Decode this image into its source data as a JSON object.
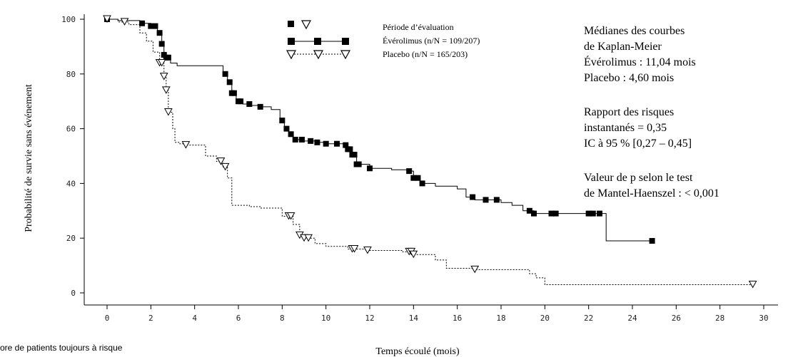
{
  "chart_data": {
    "type": "line",
    "title": "",
    "xlabel": "Temps écoulé (mois)",
    "ylabel": "Probabilité de survie sans événement",
    "xlim": [
      0,
      30
    ],
    "ylim": [
      0,
      100
    ],
    "x_ticks": [
      0,
      2,
      4,
      6,
      8,
      10,
      12,
      14,
      16,
      18,
      20,
      22,
      24,
      26,
      28,
      30
    ],
    "y_ticks": [
      0,
      20,
      40,
      60,
      80,
      100
    ],
    "grid": false,
    "legend": {
      "header": "Période d’évaluation",
      "placement": "top-center",
      "entries": [
        "Évérolimus (n/N = 109/207)",
        "Placebo (n/N = 165/203)"
      ]
    },
    "series": [
      {
        "name": "Évérolimus (n/N = 109/207)",
        "style": "solid",
        "marker": "filled-square",
        "color": "#000000",
        "points": [
          [
            0,
            100
          ],
          [
            0.5,
            99.5
          ],
          [
            1.5,
            98.5
          ],
          [
            2,
            97.5
          ],
          [
            2.3,
            95
          ],
          [
            2.5,
            91
          ],
          [
            2.6,
            87
          ],
          [
            2.7,
            86
          ],
          [
            2.9,
            84
          ],
          [
            3.2,
            83
          ],
          [
            4.5,
            83
          ],
          [
            5.3,
            80
          ],
          [
            5.5,
            77
          ],
          [
            5.7,
            73
          ],
          [
            5.9,
            70
          ],
          [
            6.2,
            69
          ],
          [
            6.6,
            68.5
          ],
          [
            7,
            68
          ],
          [
            7.5,
            67
          ],
          [
            7.9,
            63
          ],
          [
            8.1,
            60
          ],
          [
            8.3,
            58
          ],
          [
            8.5,
            56
          ],
          [
            9,
            55.5
          ],
          [
            9.5,
            55
          ],
          [
            10,
            54.5
          ],
          [
            10.8,
            54
          ],
          [
            11,
            52.5
          ],
          [
            11.2,
            50.5
          ],
          [
            11.4,
            47
          ],
          [
            12,
            45.5
          ],
          [
            13,
            45
          ],
          [
            13.8,
            44.5
          ],
          [
            14,
            42
          ],
          [
            14.3,
            40
          ],
          [
            15,
            39
          ],
          [
            16,
            38
          ],
          [
            16.4,
            35
          ],
          [
            16.8,
            34
          ],
          [
            17.3,
            34
          ],
          [
            18,
            33
          ],
          [
            18.5,
            32
          ],
          [
            19,
            30
          ],
          [
            19.5,
            29
          ],
          [
            20.5,
            29
          ],
          [
            21,
            29
          ],
          [
            22,
            29
          ],
          [
            22.5,
            29
          ],
          [
            22.8,
            19
          ],
          [
            24.9,
            19
          ]
        ],
        "censor_marks_x": [
          0,
          1.6,
          2,
          2.2,
          2.4,
          2.5,
          2.6,
          2.7,
          2.8,
          5.4,
          5.6,
          5.7,
          5.8,
          6,
          6.1,
          6.5,
          7,
          8,
          8.2,
          8.4,
          8.6,
          8.9,
          9.3,
          9.6,
          10,
          10.5,
          10.9,
          11,
          11.1,
          11.2,
          11.3,
          11.4,
          11.5,
          12,
          13.8,
          14,
          14.2,
          14.4,
          16.7,
          17.3,
          17.8,
          19.3,
          19.5,
          20.3,
          20.5,
          22,
          22.2,
          22.5,
          24.9
        ]
      },
      {
        "name": "Placebo (n/N = 165/203)",
        "style": "dotted",
        "marker": "open-triangle-down",
        "color": "#000000",
        "points": [
          [
            0,
            100
          ],
          [
            0.5,
            99
          ],
          [
            1,
            98
          ],
          [
            1.5,
            95
          ],
          [
            1.8,
            92
          ],
          [
            2.1,
            88
          ],
          [
            2.4,
            84
          ],
          [
            2.6,
            79
          ],
          [
            2.7,
            74
          ],
          [
            2.8,
            66
          ],
          [
            3,
            60
          ],
          [
            3.1,
            55
          ],
          [
            3.3,
            54.5
          ],
          [
            3.6,
            54
          ],
          [
            4.5,
            50
          ],
          [
            5,
            48
          ],
          [
            5.3,
            46
          ],
          [
            5.5,
            42
          ],
          [
            5.7,
            32
          ],
          [
            6.5,
            31.5
          ],
          [
            7,
            31
          ],
          [
            8,
            28
          ],
          [
            8.5,
            25
          ],
          [
            8.8,
            21
          ],
          [
            9,
            20
          ],
          [
            9.5,
            18
          ],
          [
            10,
            17
          ],
          [
            11,
            16
          ],
          [
            11.8,
            15.5
          ],
          [
            13.5,
            15
          ],
          [
            14,
            14
          ],
          [
            15,
            12
          ],
          [
            15.5,
            9
          ],
          [
            16.8,
            8.5
          ],
          [
            17.5,
            8.5
          ],
          [
            19.3,
            7
          ],
          [
            19.6,
            5.5
          ],
          [
            20,
            3
          ],
          [
            25,
            3
          ],
          [
            29.5,
            3
          ]
        ],
        "censor_marks_x": [
          0,
          0.8,
          2.4,
          2.5,
          2.6,
          2.7,
          2.8,
          3.6,
          5.2,
          5.4,
          8.3,
          8.4,
          8.8,
          9,
          9.2,
          11.2,
          11.3,
          11.9,
          13.8,
          13.9,
          14,
          16.8,
          29.5
        ]
      }
    ],
    "annotations": [
      "Médianes des courbes",
      "de Kaplan-Meier",
      "Évérolimus : 11,04 mois",
      "Placebo : 4,60 mois",
      "Rapport des risques",
      "instantanés = 0,35",
      "IC à 95 % [0,27 – 0,45]",
      "Valeur de p selon le test",
      "de Mantel-Haenszel : < 0,001"
    ],
    "footnote": "ore de patients toujours à risque"
  }
}
